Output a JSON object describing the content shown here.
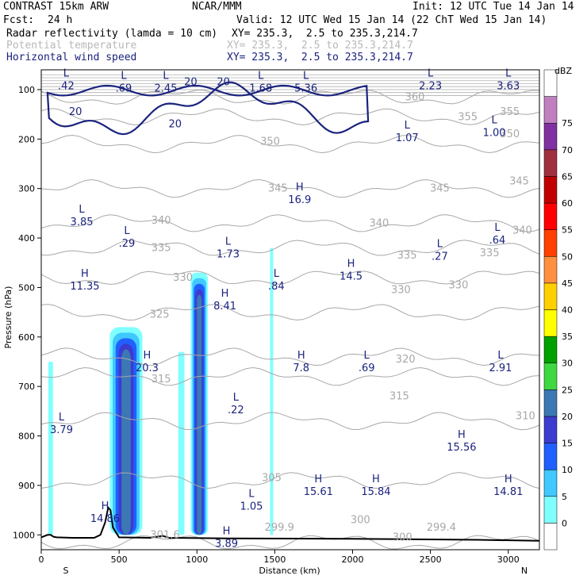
{
  "header": {
    "model": "CONTRAST 15km ARW",
    "center": "NCAR/MMM",
    "init": "Init: 12 UTC Tue 14 Jan 14",
    "fcst_label": "Fcst:",
    "fcst_value": "24 h",
    "valid": "Valid: 12 UTC Wed 15 Jan 14 (22 ChT Wed 15 Jan 14)"
  },
  "fields": [
    {
      "name": "Radar reflectivity (lamda = 10 cm)",
      "xy": "XY= 235.3,  2.5 to 235.3,214.7",
      "color": "#000000"
    },
    {
      "name": "Potential temperature",
      "xy": "XY= 235.3,  2.5 to 235.3,214.7",
      "color": "#b8b8b8"
    },
    {
      "name": "Horizontal wind speed",
      "xy": "XY= 235.3,  2.5 to 235.3,214.7",
      "color": "#1a237e"
    }
  ],
  "chart_data": {
    "type": "cross-section",
    "xlabel": "Distance (km)",
    "ylabel": "Pressure (hPa)",
    "xlim": [
      0,
      3200
    ],
    "ylim": [
      1030,
      60
    ],
    "x_ticks": [
      0,
      500,
      1000,
      1500,
      2000,
      2500,
      3000
    ],
    "y_ticks": [
      100,
      200,
      300,
      400,
      500,
      600,
      700,
      800,
      900,
      1000
    ],
    "left_end_label": "S",
    "right_end_label": "N",
    "colorbar": {
      "units": "dBZ",
      "levels": [
        0,
        5,
        10,
        15,
        20,
        25,
        30,
        35,
        40,
        45,
        50,
        55,
        60,
        65,
        70,
        75
      ],
      "colors": [
        "#ffffff",
        "#80ffff",
        "#40c8ff",
        "#2060ff",
        "#3c3cd0",
        "#3c78b4",
        "#40d840",
        "#00a000",
        "#ffff00",
        "#ffd000",
        "#ff9040",
        "#ff4000",
        "#ff0000",
        "#c00000",
        "#a03040",
        "#8030a0",
        "#c080c0",
        "#ffffff"
      ]
    },
    "reflectivity_cells": [
      {
        "x_range": [
          440,
          650
        ],
        "p_top": 580,
        "max_dbz": 25
      },
      {
        "x_range": [
          960,
          1070
        ],
        "p_top": 470,
        "max_dbz": 25
      },
      {
        "x_range": [
          45,
          75
        ],
        "p_top": 650,
        "max_dbz": 5
      },
      {
        "x_range": [
          1470,
          1490
        ],
        "p_top": 420,
        "max_dbz": 5
      },
      {
        "x_range": [
          880,
          920
        ],
        "p_top": 630,
        "max_dbz": 5
      }
    ],
    "theta_contours": [
      {
        "value": 300,
        "pressure": 1015
      },
      {
        "value": 305,
        "pressure": 890
      },
      {
        "value": 310,
        "pressure": 770
      },
      {
        "value": 315,
        "pressure": 680
      },
      {
        "value": 320,
        "pressure": 640
      },
      {
        "value": 325,
        "pressure": 550
      },
      {
        "value": 330,
        "pressure": 480
      },
      {
        "value": 335,
        "pressure": 420
      },
      {
        "value": 340,
        "pressure": 370
      },
      {
        "value": 345,
        "pressure": 300
      },
      {
        "value": 350,
        "pressure": 210
      },
      {
        "value": 355,
        "pressure": 155
      },
      {
        "value": 360,
        "pressure": 115
      }
    ],
    "theta_labels": [
      {
        "text": "360",
        "x": 2400,
        "p": 115
      },
      {
        "text": "355",
        "x": 2740,
        "p": 155
      },
      {
        "text": "355",
        "x": 3010,
        "p": 145
      },
      {
        "text": "350",
        "x": 1470,
        "p": 205
      },
      {
        "text": "350",
        "x": 3010,
        "p": 190
      },
      {
        "text": "345",
        "x": 1520,
        "p": 300
      },
      {
        "text": "345",
        "x": 2560,
        "p": 300
      },
      {
        "text": "345",
        "x": 3070,
        "p": 285
      },
      {
        "text": "340",
        "x": 770,
        "p": 365
      },
      {
        "text": "340",
        "x": 2170,
        "p": 370
      },
      {
        "text": "340",
        "x": 3090,
        "p": 385
      },
      {
        "text": "335",
        "x": 770,
        "p": 420
      },
      {
        "text": "335",
        "x": 2350,
        "p": 435
      },
      {
        "text": "335",
        "x": 2880,
        "p": 430
      },
      {
        "text": "330",
        "x": 910,
        "p": 480
      },
      {
        "text": "330",
        "x": 2310,
        "p": 505
      },
      {
        "text": "330",
        "x": 2680,
        "p": 495
      },
      {
        "text": "325",
        "x": 760,
        "p": 555
      },
      {
        "text": "320",
        "x": 2340,
        "p": 645
      },
      {
        "text": "315",
        "x": 770,
        "p": 685
      },
      {
        "text": "315",
        "x": 2300,
        "p": 720
      },
      {
        "text": "310",
        "x": 3110,
        "p": 760
      },
      {
        "text": "305",
        "x": 1480,
        "p": 885
      },
      {
        "text": "301.6",
        "x": 795,
        "p": 1000
      },
      {
        "text": "299.9",
        "x": 1530,
        "p": 985
      },
      {
        "text": "300",
        "x": 2050,
        "p": 970
      },
      {
        "text": "300",
        "x": 2320,
        "p": 1005
      },
      {
        "text": "299.4",
        "x": 2570,
        "p": 985
      }
    ],
    "wind_contours": [
      {
        "value": 20,
        "p_min": 90,
        "p_max": 215
      }
    ],
    "wind_contour_labels": [
      {
        "text": "20",
        "x": 220,
        "p": 145
      },
      {
        "text": "20",
        "x": 860,
        "p": 170
      },
      {
        "text": "20",
        "x": 1170,
        "p": 85
      },
      {
        "text": "20",
        "x": 960,
        "p": 85
      }
    ],
    "wind_extrema": [
      {
        "type": "L",
        "value": ".42",
        "x": 160,
        "p": 80
      },
      {
        "type": "L",
        "value": ".69",
        "x": 530,
        "p": 85
      },
      {
        "type": "L",
        "value": "2.45",
        "x": 800,
        "p": 85
      },
      {
        "type": "L",
        "value": "1.68",
        "x": 1410,
        "p": 85
      },
      {
        "type": "L",
        "value": "5.36",
        "x": 1700,
        "p": 85
      },
      {
        "type": "L",
        "value": "2.23",
        "x": 2500,
        "p": 80
      },
      {
        "type": "L",
        "value": "3.63",
        "x": 3000,
        "p": 80
      },
      {
        "type": "L",
        "value": "1.07",
        "x": 2350,
        "p": 185
      },
      {
        "type": "L",
        "value": "1.00",
        "x": 2910,
        "p": 175
      },
      {
        "type": "H",
        "value": "16.9",
        "x": 1660,
        "p": 310
      },
      {
        "type": "L",
        "value": "3.85",
        "x": 260,
        "p": 355
      },
      {
        "type": "L",
        "value": ".29",
        "x": 550,
        "p": 398
      },
      {
        "type": "L",
        "value": "1.73",
        "x": 1200,
        "p": 420
      },
      {
        "type": "L",
        "value": ".27",
        "x": 2560,
        "p": 425
      },
      {
        "type": "L",
        "value": ".64",
        "x": 2930,
        "p": 392
      },
      {
        "type": "H",
        "value": "14.5",
        "x": 1990,
        "p": 465
      },
      {
        "type": "H",
        "value": "11.35",
        "x": 280,
        "p": 485
      },
      {
        "type": "L",
        "value": ".84",
        "x": 1510,
        "p": 485
      },
      {
        "type": "H",
        "value": "8.41",
        "x": 1180,
        "p": 525
      },
      {
        "type": "H",
        "value": "20.3",
        "x": 680,
        "p": 650
      },
      {
        "type": "H",
        "value": "7.8",
        "x": 1670,
        "p": 650
      },
      {
        "type": "L",
        "value": ".69",
        "x": 2090,
        "p": 650
      },
      {
        "type": "L",
        "value": "2.91",
        "x": 2950,
        "p": 650
      },
      {
        "type": "L",
        "value": ".22",
        "x": 1250,
        "p": 735
      },
      {
        "type": "L",
        "value": "3.79",
        "x": 130,
        "p": 775
      },
      {
        "type": "H",
        "value": "15.56",
        "x": 2700,
        "p": 810
      },
      {
        "type": "H",
        "value": "15.61",
        "x": 1780,
        "p": 900
      },
      {
        "type": "H",
        "value": "15.84",
        "x": 2150,
        "p": 900
      },
      {
        "type": "H",
        "value": "14.81",
        "x": 3000,
        "p": 900
      },
      {
        "type": "L",
        "value": "1.05",
        "x": 1350,
        "p": 930
      },
      {
        "type": "H",
        "value": "14.86",
        "x": 410,
        "p": 955
      },
      {
        "type": "H",
        "value": "3.89",
        "x": 1190,
        "p": 1005
      }
    ],
    "terrain": [
      {
        "x": 0,
        "p": 1005
      },
      {
        "x": 40,
        "p": 1000
      },
      {
        "x": 60,
        "p": 1000
      },
      {
        "x": 80,
        "p": 1004
      },
      {
        "x": 100,
        "p": 1005
      },
      {
        "x": 200,
        "p": 1006
      },
      {
        "x": 340,
        "p": 1006
      },
      {
        "x": 380,
        "p": 1000
      },
      {
        "x": 410,
        "p": 975
      },
      {
        "x": 430,
        "p": 945
      },
      {
        "x": 445,
        "p": 950
      },
      {
        "x": 460,
        "p": 985
      },
      {
        "x": 500,
        "p": 1005
      },
      {
        "x": 700,
        "p": 1006
      },
      {
        "x": 780,
        "p": 1002
      },
      {
        "x": 820,
        "p": 1006
      },
      {
        "x": 1200,
        "p": 1007
      },
      {
        "x": 2000,
        "p": 1008
      },
      {
        "x": 2800,
        "p": 1010
      },
      {
        "x": 3200,
        "p": 1012
      }
    ]
  }
}
